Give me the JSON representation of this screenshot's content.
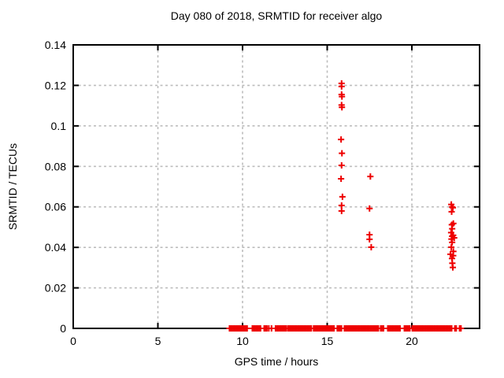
{
  "chart_data": {
    "type": "scatter",
    "title": "Day 080 of 2018, SRMTID for receiver algo",
    "xlabel": "GPS time / hours",
    "ylabel": "SRMTID / TECUs",
    "xlim": [
      0,
      24
    ],
    "ylim": [
      0,
      0.14
    ],
    "xticks": {
      "values": [
        0,
        5,
        10,
        15,
        20
      ],
      "labels": [
        "0",
        "5",
        "10",
        "15",
        "20"
      ]
    },
    "yticks": {
      "values": [
        0,
        0.02,
        0.04,
        0.06,
        0.08,
        0.1,
        0.12,
        0.14
      ],
      "labels": [
        "0",
        "0.02",
        "0.04",
        "0.06",
        "0.08",
        "0.1",
        "0.12",
        "0.14"
      ]
    },
    "grid": true,
    "legend_position": "none",
    "background_color": "#ffffff",
    "axis_color": "#000000",
    "grid_color": "#bdbdbd",
    "marker": {
      "shape": "plus",
      "color": "#ee0000",
      "size": 8,
      "stroke_width": 2
    },
    "series": [
      {
        "name": "SRMTID",
        "points": [
          [
            15.85,
            0.121
          ],
          [
            15.85,
            0.1195
          ],
          [
            15.85,
            0.1155
          ],
          [
            15.87,
            0.1145
          ],
          [
            15.85,
            0.1103
          ],
          [
            15.87,
            0.1092
          ],
          [
            15.82,
            0.0933
          ],
          [
            15.87,
            0.0865
          ],
          [
            15.85,
            0.0805
          ],
          [
            15.82,
            0.0739
          ],
          [
            15.9,
            0.065
          ],
          [
            15.85,
            0.0607
          ],
          [
            15.85,
            0.058
          ],
          [
            17.55,
            0.075
          ],
          [
            17.5,
            0.0592
          ],
          [
            17.5,
            0.0463
          ],
          [
            17.5,
            0.044
          ],
          [
            17.6,
            0.0401
          ],
          [
            22.33,
            0.0612
          ],
          [
            22.38,
            0.06
          ],
          [
            22.42,
            0.0596
          ],
          [
            22.35,
            0.0576
          ],
          [
            22.45,
            0.0518
          ],
          [
            22.36,
            0.0512
          ],
          [
            22.38,
            0.0492
          ],
          [
            22.32,
            0.0473
          ],
          [
            22.44,
            0.046
          ],
          [
            22.38,
            0.0455
          ],
          [
            22.5,
            0.0447
          ],
          [
            22.34,
            0.0441
          ],
          [
            22.38,
            0.0425
          ],
          [
            22.33,
            0.0401
          ],
          [
            22.45,
            0.038
          ],
          [
            22.28,
            0.0366
          ],
          [
            22.44,
            0.0359
          ],
          [
            22.37,
            0.0345
          ],
          [
            22.39,
            0.0322
          ],
          [
            22.42,
            0.0301
          ]
        ]
      }
    ],
    "zero_value_band": {
      "value": 0,
      "segments_hours": [
        [
          9.23,
          10.34
        ],
        [
          10.58,
          11.09
        ],
        [
          11.28,
          11.46
        ],
        [
          11.55,
          11.6
        ],
        [
          11.71,
          11.78
        ],
        [
          11.95,
          12.64
        ],
        [
          12.7,
          13.2
        ],
        [
          13.26,
          14.06
        ],
        [
          14.2,
          15.45
        ],
        [
          15.6,
          15.84
        ],
        [
          16.02,
          18.02
        ],
        [
          18.16,
          18.34
        ],
        [
          18.58,
          19.33
        ],
        [
          19.56,
          19.89
        ],
        [
          20.03,
          22.36
        ],
        [
          22.54,
          22.68
        ],
        [
          22.82,
          22.95
        ]
      ]
    }
  }
}
